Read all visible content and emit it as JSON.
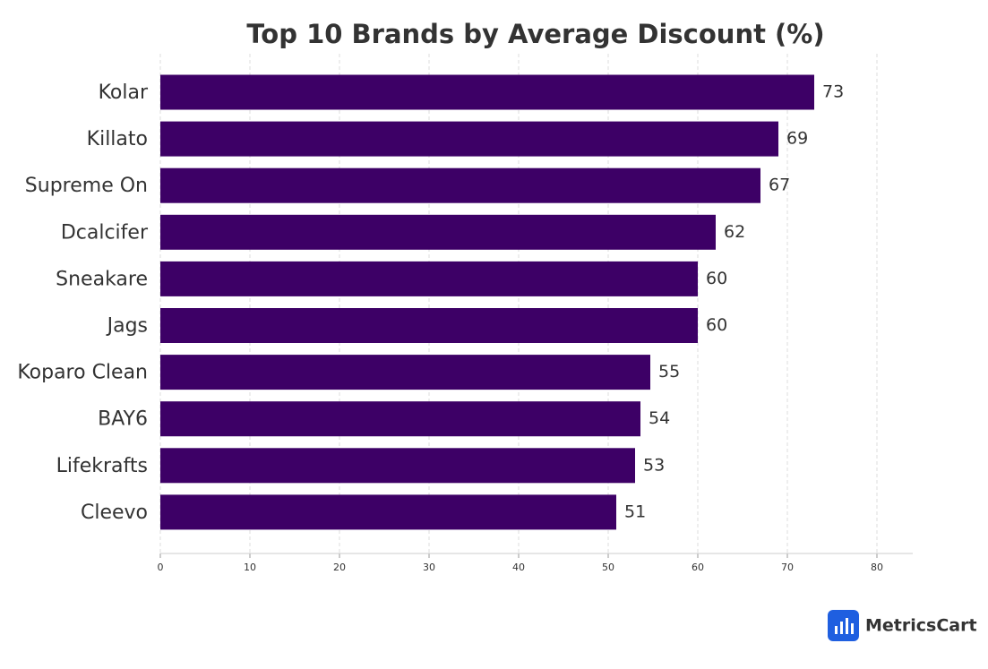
{
  "chart_data": {
    "type": "bar",
    "orientation": "horizontal",
    "title": "Top 10 Brands by Average Discount (%)",
    "categories": [
      "Kolar",
      "Killato",
      "Supreme On",
      "Dcalcifer",
      "Sneakare",
      "Jags",
      "Koparo Clean",
      "BAY6",
      "Lifekrafts",
      "Cleevo"
    ],
    "values": [
      73,
      69,
      67,
      62,
      60,
      60,
      54.7,
      53.6,
      53,
      50.9
    ],
    "value_labels": [
      "73",
      "69",
      "67",
      "62",
      "60",
      "60",
      "55",
      "54",
      "53",
      "51"
    ],
    "color": "#3d0066",
    "xlim": [
      0,
      84
    ],
    "xticks": [
      0,
      10,
      20,
      30,
      40,
      50,
      60,
      70,
      80
    ],
    "grid": true
  },
  "brand": "MetricsCart"
}
